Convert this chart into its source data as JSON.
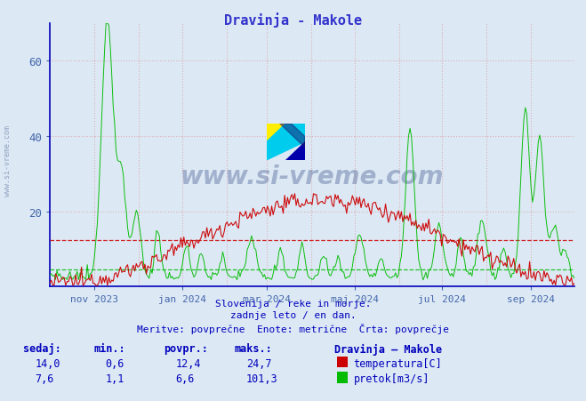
{
  "title": "Dravinja - Makole",
  "title_color": "#3333cc",
  "bg_color": "#dce9f5",
  "plot_bg_color": "#dce9f5",
  "y_label_color": "#4466aa",
  "x_label_color": "#4466aa",
  "grid_color": "#dd8888",
  "y_ticks": [
    20,
    40,
    60
  ],
  "y_max": 70,
  "y_min": 0,
  "x_ticks_labels": [
    "nov 2023",
    "jan 2024",
    "mar 2024",
    "maj 2024",
    "jul 2024",
    "sep 2024"
  ],
  "temp_color": "#cc0000",
  "flow_color": "#00bb00",
  "temp_avg": 12.4,
  "flow_avg": 6.6,
  "temp_max": 24.7,
  "flow_max": 101.3,
  "temp_min": 0.6,
  "flow_min": 1.1,
  "temp_current": 14.0,
  "flow_current": 7.6,
  "n_points": 365,
  "subtitle1": "Slovenija / reke in morje.",
  "subtitle2": "zadnje leto / en dan.",
  "subtitle3": "Meritve: povprečne  Enote: metrične  Črta: povprečje",
  "legend_title": "Dravinja – Makole",
  "watermark": "www.si-vreme.com",
  "axis_color": "#0000bb",
  "tick_color": "#4466aa",
  "flow_display_max": 70.0,
  "month_days": [
    0,
    31,
    62,
    92,
    123,
    151,
    182,
    212,
    243,
    273,
    304,
    335,
    365
  ],
  "month_label_days": [
    31,
    92,
    151,
    212,
    273,
    335
  ]
}
